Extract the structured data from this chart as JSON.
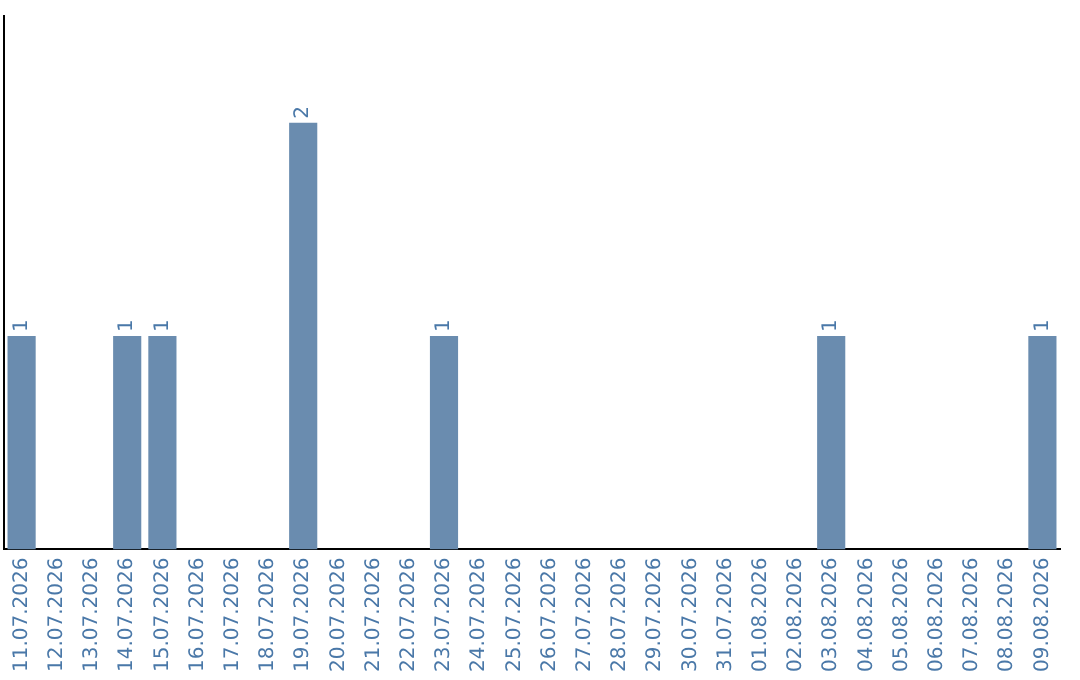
{
  "chart_data": {
    "type": "bar",
    "categories": [
      "11.07.2026",
      "12.07.2026",
      "13.07.2026",
      "14.07.2026",
      "15.07.2026",
      "16.07.2026",
      "17.07.2026",
      "18.07.2026",
      "19.07.2026",
      "20.07.2026",
      "21.07.2026",
      "22.07.2026",
      "23.07.2026",
      "24.07.2026",
      "25.07.2026",
      "26.07.2026",
      "27.07.2026",
      "28.07.2026",
      "29.07.2026",
      "30.07.2026",
      "31.07.2026",
      "01.08.2026",
      "02.08.2026",
      "03.08.2026",
      "04.08.2026",
      "05.08.2026",
      "06.08.2026",
      "07.08.2026",
      "08.08.2026",
      "09.08.2026"
    ],
    "values": [
      1,
      0,
      0,
      1,
      1,
      0,
      0,
      0,
      2,
      0,
      0,
      0,
      1,
      0,
      0,
      0,
      0,
      0,
      0,
      0,
      0,
      0,
      0,
      1,
      0,
      0,
      0,
      0,
      0,
      1
    ],
    "value_labels": [
      "1",
      null,
      null,
      "1",
      "1",
      null,
      null,
      null,
      "2",
      null,
      null,
      null,
      "1",
      null,
      null,
      null,
      null,
      null,
      null,
      null,
      null,
      null,
      null,
      "1",
      null,
      null,
      null,
      null,
      null,
      "1"
    ],
    "color": "#6a8caf",
    "tick_labels": "x",
    "grid": false,
    "legend": false
  }
}
